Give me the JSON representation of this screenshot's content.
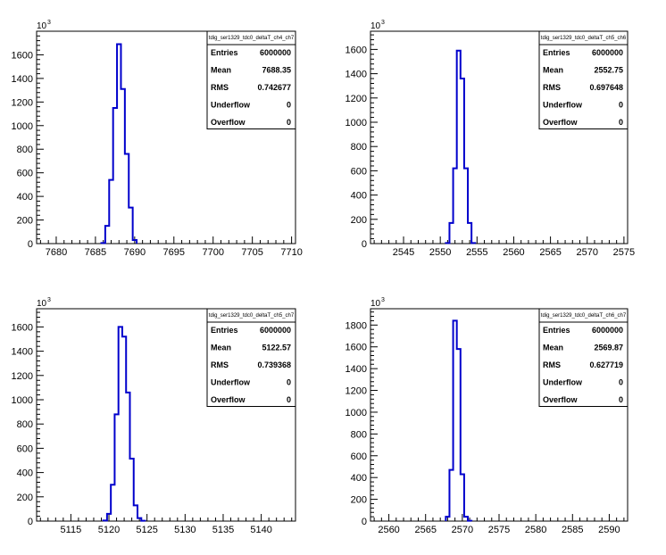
{
  "chart_data": [
    {
      "type": "bar",
      "title": "tdig_ser1329_tdc0_deltaT_ch4_ch7",
      "xlim": [
        7677.5,
        7710.5
      ],
      "ylim": [
        0,
        1800
      ],
      "xticks": [
        7680,
        7685,
        7690,
        7695,
        7700,
        7705,
        7710
      ],
      "yticks": [
        0,
        200,
        400,
        600,
        800,
        1000,
        1200,
        1400,
        1600
      ],
      "y_multiplier": "10",
      "y_multiplier_exp": "3",
      "bin_width": 0.5,
      "x": [
        7686,
        7686.5,
        7687,
        7687.5,
        7688,
        7688.5,
        7689,
        7689.5,
        7690
      ],
      "values": [
        5,
        150,
        540,
        1150,
        1690,
        1310,
        760,
        305,
        30
      ],
      "stats": [
        {
          "label": "Entries",
          "value": "6000000"
        },
        {
          "label": "Mean",
          "value": "7688.35"
        },
        {
          "label": "RMS",
          "value": "0.742677"
        },
        {
          "label": "Underflow",
          "value": "0"
        },
        {
          "label": "Overflow",
          "value": "0"
        }
      ]
    },
    {
      "type": "bar",
      "title": "tdig_ser1329_tdc0_deltaT_ch5_ch6",
      "xlim": [
        2540.5,
        2575.5
      ],
      "ylim": [
        0,
        1750
      ],
      "xticks": [
        2545,
        2550,
        2555,
        2560,
        2565,
        2570,
        2575
      ],
      "yticks": [
        0,
        200,
        400,
        600,
        800,
        1000,
        1200,
        1400,
        1600
      ],
      "y_multiplier": "10",
      "y_multiplier_exp": "3",
      "bin_width": 0.5,
      "x": [
        2551,
        2551.5,
        2552,
        2552.5,
        2553,
        2553.5,
        2554,
        2554.5
      ],
      "values": [
        5,
        170,
        620,
        1590,
        1360,
        620,
        170,
        5
      ],
      "stats": [
        {
          "label": "Entries",
          "value": "6000000"
        },
        {
          "label": "Mean",
          "value": "2552.75"
        },
        {
          "label": "RMS",
          "value": "0.697648"
        },
        {
          "label": "Underflow",
          "value": "0"
        },
        {
          "label": "Overflow",
          "value": "0"
        }
      ]
    },
    {
      "type": "bar",
      "title": "tdig_ser1329_tdc0_deltaT_ch5_ch7",
      "xlim": [
        5110.5,
        5144.5
      ],
      "ylim": [
        0,
        1750
      ],
      "xticks": [
        5115,
        5120,
        5125,
        5130,
        5135,
        5140
      ],
      "yticks": [
        0,
        200,
        400,
        600,
        800,
        1000,
        1200,
        1400,
        1600
      ],
      "y_multiplier": "10",
      "y_multiplier_exp": "3",
      "bin_width": 0.5,
      "x": [
        5119.5,
        5120,
        5120.5,
        5121,
        5121.5,
        5122,
        5122.5,
        5123,
        5123.5,
        5124,
        5124.5
      ],
      "values": [
        5,
        60,
        300,
        880,
        1600,
        1520,
        1060,
        515,
        130,
        25,
        3
      ],
      "stats": [
        {
          "label": "Entries",
          "value": "6000000"
        },
        {
          "label": "Mean",
          "value": "5122.57"
        },
        {
          "label": "RMS",
          "value": "0.739368"
        },
        {
          "label": "Underflow",
          "value": "0"
        },
        {
          "label": "Overflow",
          "value": "0"
        }
      ]
    },
    {
      "type": "bar",
      "title": "tdig_ser1329_tdc0_deltaT_ch6_ch7",
      "xlim": [
        2557.5,
        2592.5
      ],
      "ylim": [
        0,
        1950
      ],
      "xticks": [
        2560,
        2565,
        2570,
        2575,
        2580,
        2585,
        2590
      ],
      "yticks": [
        0,
        200,
        400,
        600,
        800,
        1000,
        1200,
        1400,
        1600,
        1800
      ],
      "y_multiplier": "10",
      "y_multiplier_exp": "3",
      "bin_width": 0.5,
      "x": [
        2568,
        2568.5,
        2569,
        2569.5,
        2570,
        2570.5,
        2571
      ],
      "values": [
        40,
        470,
        1840,
        1580,
        430,
        40,
        3
      ],
      "stats": [
        {
          "label": "Entries",
          "value": "6000000"
        },
        {
          "label": "Mean",
          "value": "2569.87"
        },
        {
          "label": "RMS",
          "value": "0.627719"
        },
        {
          "label": "Underflow",
          "value": "0"
        },
        {
          "label": "Overflow",
          "value": "0"
        }
      ]
    }
  ]
}
